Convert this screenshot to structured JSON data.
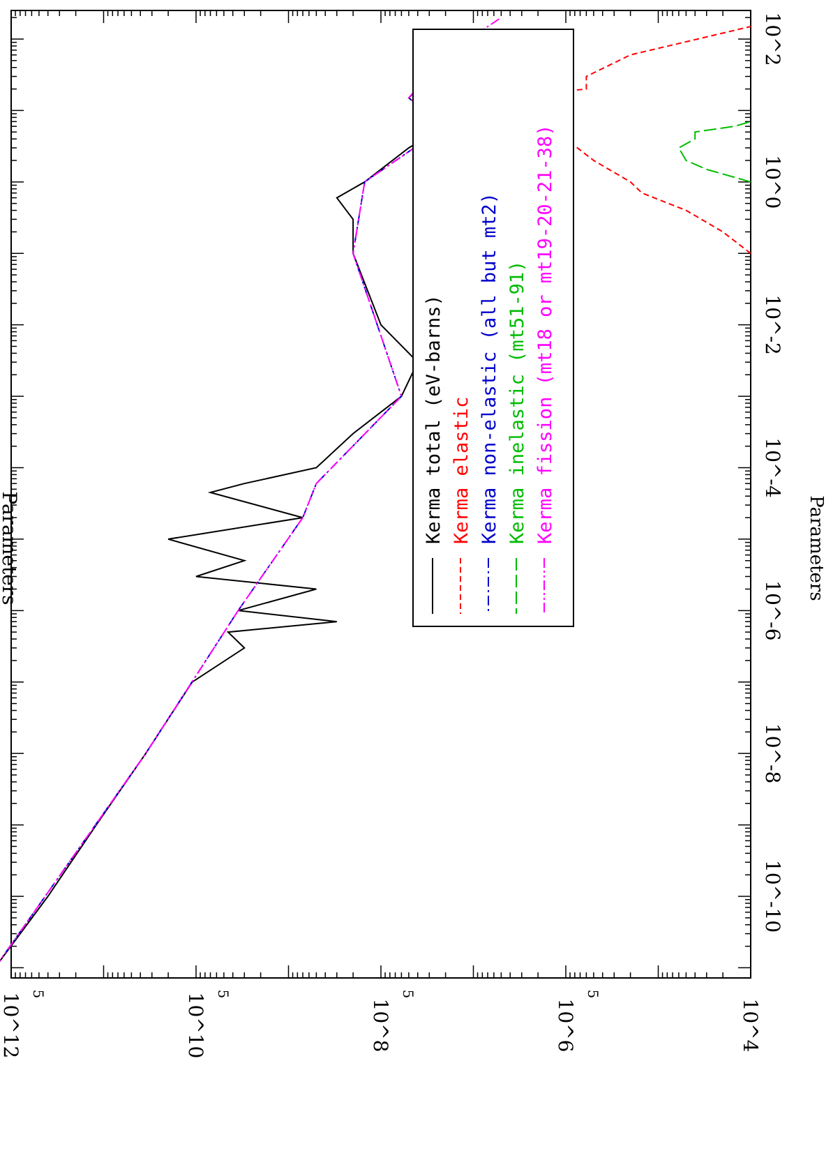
{
  "chart_data": {
    "type": "line",
    "orientation": "rotated-90-cw",
    "title": "Parameters",
    "xlabel": "",
    "ylabel": "Parameters",
    "xscale": "log",
    "yscale": "log",
    "xlim": [
      1e-11,
      200
    ],
    "ylim": [
      10000.0,
      1000000000000.0
    ],
    "x_ticks": [
      "10^-10",
      "10^-8",
      "10^-6",
      "10^-4",
      "10^-2",
      "10^0",
      "10^2"
    ],
    "y_ticks": [
      "10^4",
      "10^6",
      "10^8",
      "10^10",
      "10^12"
    ],
    "y_minor_label": "5",
    "legend": {
      "placement": "upper-right",
      "entries": [
        {
          "name": "Kerma total  (eV-barns)",
          "color": "#000000",
          "dash": "solid"
        },
        {
          "name": "Kerma elastic",
          "color": "#ff0000",
          "dash": "dashed"
        },
        {
          "name": "Kerma non-elastic (all but mt2)",
          "color": "#0000cc",
          "dash": "dash-dot"
        },
        {
          "name": "Kerma inelastic (mt51-91)",
          "color": "#00bb00",
          "dash": "long-dash"
        },
        {
          "name": "Kerma fission (mt18 or mt19-20-21-38)",
          "color": "#ff00ff",
          "dash": "dash-dot-dot"
        }
      ]
    },
    "series": [
      {
        "name": "Kerma total  (eV-barns)",
        "color": "#000000",
        "x": [
          1e-11,
          1e-10,
          1e-09,
          1e-08,
          1e-07,
          3e-07,
          5e-07,
          7e-07,
          1e-06,
          2e-06,
          3e-06,
          5e-06,
          1e-05,
          2e-05,
          4.5e-05,
          6e-05,
          0.0001,
          0.0003,
          0.001,
          0.003,
          0.01,
          0.1,
          0.3,
          0.6,
          1,
          3,
          6,
          15,
          20,
          40,
          130
        ],
        "y": [
          1500000000000.0,
          400000000000.0,
          120000000000.0,
          35000000000.0,
          11000000000.0,
          3000000000.0,
          4500000000.0,
          300000000.0,
          3500000000.0,
          500000000.0,
          10000000000.0,
          3000000000.0,
          20000000000.0,
          700000000.0,
          7000000000.0,
          3000000000.0,
          500000000.0,
          200000000.0,
          60000000.0,
          40000000.0,
          100000000.0,
          200000000.0,
          200000000.0,
          300000000.0,
          150000000.0,
          50000000.0,
          20000000.0,
          50000000.0,
          40000000.0,
          30000000.0,
          10000000.0
        ]
      },
      {
        "name": "Kerma elastic",
        "color": "#ff0000",
        "x": [
          0.1,
          0.2,
          0.4,
          0.7,
          1,
          2,
          4,
          8,
          15,
          20,
          30,
          60,
          150
        ],
        "y": [
          10000.0,
          20000.0,
          50000.0,
          150000.0,
          200000.0,
          500000.0,
          1000000.0,
          2000000.0,
          5000000.0,
          600000.0,
          600000.0,
          200000.0,
          10000.0
        ]
      },
      {
        "name": "Kerma non-elastic (all but mt2)",
        "color": "#0000cc",
        "x": [
          1e-11,
          1e-08,
          1e-06,
          2e-05,
          6e-05,
          0.001,
          0.1,
          1,
          6,
          15,
          130
        ],
        "y": [
          1500000000000.0,
          35000000000.0,
          3500000000.0,
          700000000.0,
          500000000.0,
          60000000.0,
          200000000.0,
          150000000.0,
          20000000.0,
          50000000.0,
          10000000.0
        ]
      },
      {
        "name": "Kerma inelastic (mt51-91)",
        "color": "#00bb00",
        "x": [
          1,
          1.5,
          2,
          3,
          4,
          5,
          6,
          7
        ],
        "y": [
          10000.0,
          30000.0,
          50000.0,
          60000.0,
          40000.0,
          40000.0,
          15000.0,
          10000.0
        ]
      },
      {
        "name": "Kerma fission (mt18 or mt19-20-21-38)",
        "color": "#ff00ff",
        "x": [
          1e-11,
          1e-08,
          1e-06,
          2e-05,
          6e-05,
          0.001,
          0.1,
          1,
          6,
          15,
          60,
          200
        ],
        "y": [
          1500000000000.0,
          35000000000.0,
          3500000000.0,
          700000000.0,
          500000000.0,
          60000000.0,
          200000000.0,
          150000000.0,
          20000000.0,
          50000000.0,
          20000000.0,
          5000000.0
        ]
      }
    ]
  }
}
